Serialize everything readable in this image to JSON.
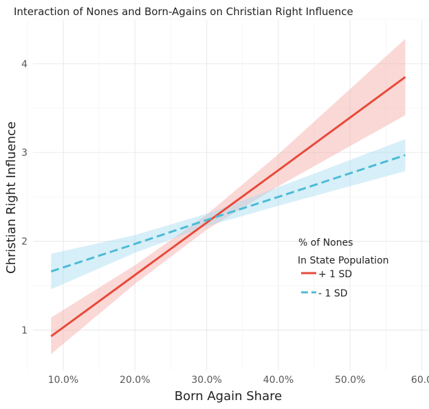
{
  "chart_data": {
    "type": "line",
    "title": "Interaction of Nones and Born-Agains on Christian Right Influence",
    "xlabel": "Born Again Share",
    "ylabel": "Christian Right Influence",
    "xlim": [
      6,
      62
    ],
    "ylim": [
      0.45,
      4.45
    ],
    "x_ticks": [
      10,
      20,
      30,
      40,
      50,
      60
    ],
    "x_tick_labels": [
      "10.0%",
      "20.0%",
      "30.0%",
      "40.0%",
      "50.0%",
      "60.0"
    ],
    "y_ticks": [
      1,
      2,
      3,
      4
    ],
    "y_tick_labels": [
      "1",
      "2",
      "3",
      "4"
    ],
    "grid": true,
    "legend": {
      "title_line1": "% of Nones",
      "title_line2": "In State Population",
      "placement": "right-center"
    },
    "series": [
      {
        "name": "+ 1 SD",
        "color": "#e8493a",
        "ribbon_color": "#f4a9a3",
        "dash": false,
        "x": [
          8.3,
          20,
          30,
          40,
          57.7
        ],
        "y": [
          0.93,
          1.62,
          2.21,
          2.8,
          3.85
        ],
        "lower": [
          0.73,
          1.52,
          2.13,
          2.62,
          3.42
        ],
        "upper": [
          1.14,
          1.73,
          2.3,
          2.98,
          4.28
        ]
      },
      {
        "name": "- 1 SD",
        "color": "#4bbbd6",
        "ribbon_color": "#a6dcef",
        "dash": true,
        "x": [
          8.3,
          20,
          30,
          40,
          57.7
        ],
        "y": [
          1.66,
          1.97,
          2.24,
          2.5,
          2.97
        ],
        "lower": [
          1.46,
          1.87,
          2.17,
          2.4,
          2.79
        ],
        "upper": [
          1.86,
          2.07,
          2.31,
          2.61,
          3.15
        ]
      }
    ]
  }
}
